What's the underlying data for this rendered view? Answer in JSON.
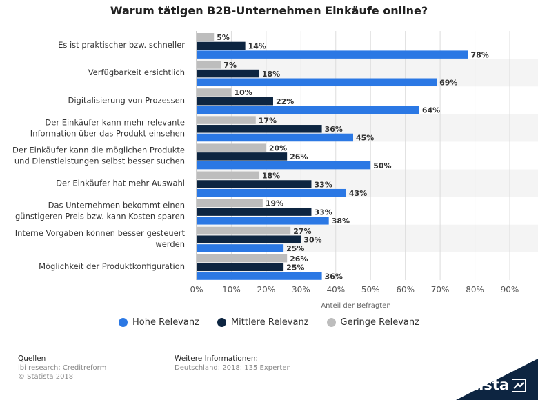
{
  "chart_data": {
    "type": "bar",
    "orientation": "horizontal",
    "title": "Warum tätigen B2B-Unternehmen Einkäufe online?",
    "xlabel": "Anteil der Befragten",
    "xlim": [
      0,
      90
    ],
    "x_ticks": [
      "0%",
      "10%",
      "20%",
      "30%",
      "40%",
      "50%",
      "60%",
      "70%",
      "80%",
      "90%"
    ],
    "grid": true,
    "legend_position": "bottom",
    "categories": [
      [
        "Es ist praktischer bzw. schneller"
      ],
      [
        "Verfügbarkeit ersichtlich"
      ],
      [
        "Digitalisierung von Prozessen"
      ],
      [
        "Der Einkäufer kann mehr relevante",
        "Information über das Produkt einsehen"
      ],
      [
        "Der Einkäufer kann die möglichen Produkte",
        "und Dienstleistungen selbst besser suchen"
      ],
      [
        "Der Einkäufer hat mehr Auswahl"
      ],
      [
        "Das Unternehmen bekommt einen",
        "günstigeren Preis bzw. kann Kosten sparen"
      ],
      [
        "Interne Vorgaben können besser gesteuert",
        "werden"
      ],
      [
        "Möglichkeit der Produktkonfiguration"
      ]
    ],
    "series": [
      {
        "name": "Geringe Relevanz",
        "color": "#bdbdbd",
        "values": [
          5,
          7,
          10,
          17,
          20,
          18,
          19,
          27,
          26
        ]
      },
      {
        "name": "Mittlere Relevanz",
        "color": "#0d2541",
        "values": [
          14,
          18,
          22,
          36,
          26,
          33,
          33,
          30,
          25
        ]
      },
      {
        "name": "Hohe Relevanz",
        "color": "#2b78e4",
        "values": [
          78,
          69,
          64,
          45,
          50,
          43,
          38,
          25,
          36
        ]
      }
    ],
    "legend_order": [
      "Hohe Relevanz",
      "Mittlere Relevanz",
      "Geringe Relevanz"
    ]
  },
  "footer": {
    "sources_label": "Quellen",
    "sources": "ibi research; Creditreform",
    "copyright": "© Statista 2018",
    "info_label": "Weitere Informationen:",
    "info": "Deutschland; 2018; 135 Experten"
  },
  "brand": "statista"
}
